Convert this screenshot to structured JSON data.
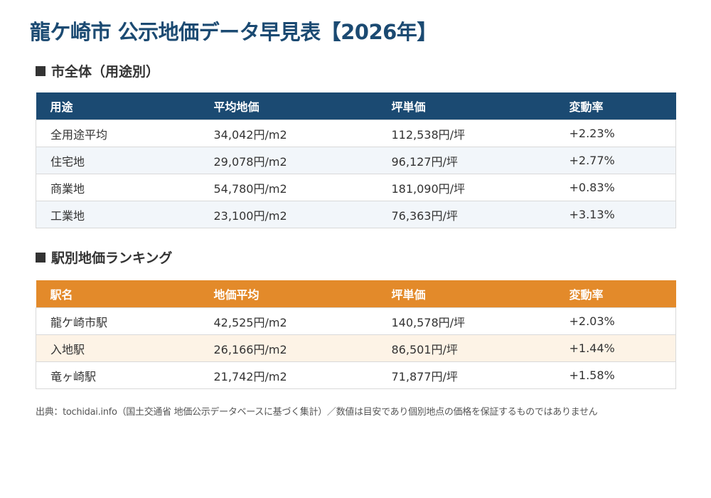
{
  "title": "龍ケ崎市 公示地価データ早見表【2026年】",
  "section1": {
    "heading": "市全体（用途別）",
    "headers": [
      "用途",
      "平均地価",
      "坪単価",
      "変動率"
    ],
    "rows": [
      [
        "全用途平均",
        "34,042円/m2",
        "112,538円/坪",
        "+2.23%"
      ],
      [
        "住宅地",
        "29,078円/m2",
        "96,127円/坪",
        "+2.77%"
      ],
      [
        "商業地",
        "54,780円/m2",
        "181,090円/坪",
        "+0.83%"
      ],
      [
        "工業地",
        "23,100円/m2",
        "76,363円/坪",
        "+3.13%"
      ]
    ]
  },
  "section2": {
    "heading": "駅別地価ランキング",
    "headers": [
      "駅名",
      "地価平均",
      "坪単価",
      "変動率"
    ],
    "rows": [
      [
        "龍ケ崎市駅",
        "42,525円/m2",
        "140,578円/坪",
        "+2.03%"
      ],
      [
        "入地駅",
        "26,166円/m2",
        "86,501円/坪",
        "+1.44%"
      ],
      [
        "竜ヶ崎駅",
        "21,742円/m2",
        "71,877円/坪",
        "+1.58%"
      ]
    ]
  },
  "source": "出典：tochidai.info（国土交通省 地価公示データベースに基づく集計）／数値は目安であり個別地点の価格を保証するものではありません",
  "colors": {
    "title": "#1b4a72",
    "table1_header": "#1b4a72",
    "table2_header": "#e38a2a"
  }
}
